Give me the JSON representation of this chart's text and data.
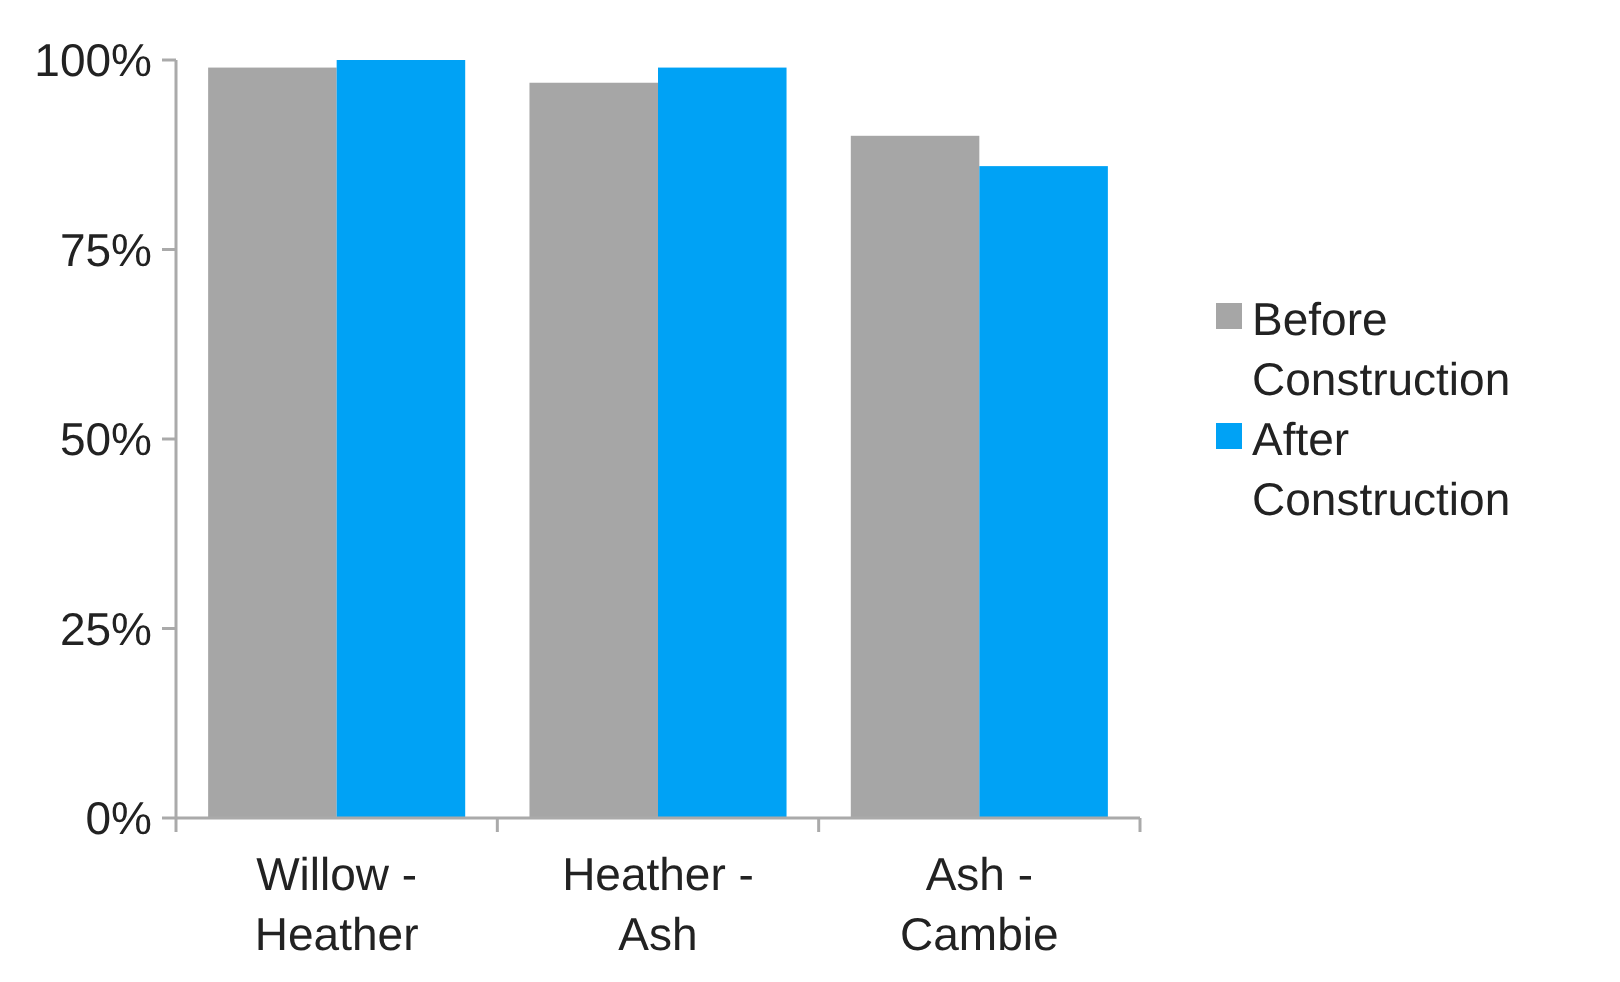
{
  "chart_data": {
    "type": "bar",
    "categories": [
      "Willow - Heather",
      "Heather - Ash",
      "Ash - Cambie"
    ],
    "series": [
      {
        "name": "Before Construction",
        "color": "#a6a6a6",
        "values": [
          99,
          97,
          90
        ]
      },
      {
        "name": "After Construction",
        "color": "#00a2f5",
        "values": [
          100,
          99,
          86
        ]
      }
    ],
    "ylim": [
      0,
      100
    ],
    "yticks": [
      {
        "value": 0,
        "label": "0%"
      },
      {
        "value": 25,
        "label": "25%"
      },
      {
        "value": 50,
        "label": "50%"
      },
      {
        "value": 75,
        "label": "75%"
      },
      {
        "value": 100,
        "label": "100%"
      }
    ],
    "legend": "right"
  }
}
